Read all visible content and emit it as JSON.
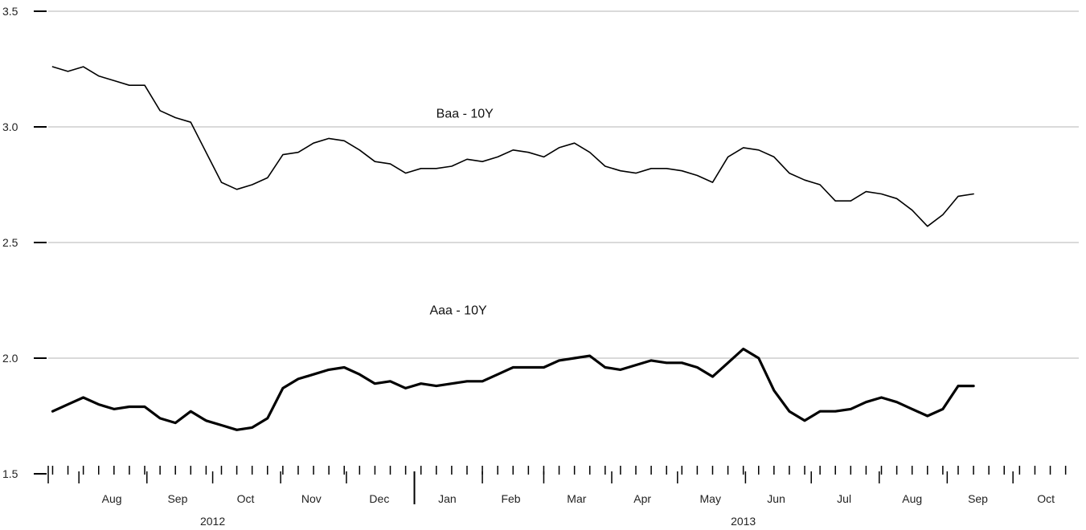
{
  "chart_data": {
    "type": "line",
    "title": "",
    "xlabel": "",
    "ylabel": "",
    "ylim": [
      1.5,
      3.5
    ],
    "xlim": [
      "2012-07-18",
      "2013-10-31"
    ],
    "grid": true,
    "y_ticks": [
      "1.5",
      "2.0",
      "2.5",
      "3.0",
      "3.5"
    ],
    "month_labels": [
      {
        "label": "Aug",
        "mid": "2012-08-16"
      },
      {
        "label": "Sep",
        "mid": "2012-09-15"
      },
      {
        "label": "Oct",
        "mid": "2012-10-16"
      },
      {
        "label": "Nov",
        "mid": "2012-11-15"
      },
      {
        "label": "Dec",
        "mid": "2012-12-16"
      },
      {
        "label": "Jan",
        "mid": "2013-01-16"
      },
      {
        "label": "Feb",
        "mid": "2013-02-14"
      },
      {
        "label": "Mar",
        "mid": "2013-03-16"
      },
      {
        "label": "Apr",
        "mid": "2013-04-15"
      },
      {
        "label": "May",
        "mid": "2013-05-16"
      },
      {
        "label": "Jun",
        "mid": "2013-06-15"
      },
      {
        "label": "Jul",
        "mid": "2013-07-16"
      },
      {
        "label": "Aug",
        "mid": "2013-08-16"
      },
      {
        "label": "Sep",
        "mid": "2013-09-15"
      },
      {
        "label": "Oct",
        "mid": "2013-10-16"
      }
    ],
    "month_boundaries": [
      "2012-08-01",
      "2012-09-01",
      "2012-10-01",
      "2012-11-01",
      "2012-12-01",
      "2013-01-01",
      "2013-02-01",
      "2013-03-01",
      "2013-04-01",
      "2013-05-01",
      "2013-06-01",
      "2013-07-01",
      "2013-08-01",
      "2013-09-01",
      "2013-10-01",
      "2013-11-01"
    ],
    "year_boundary": "2013-01-01",
    "year_labels": [
      {
        "label": "2012",
        "mid": "2012-10-01"
      },
      {
        "label": "2013",
        "mid": "2013-05-31"
      }
    ],
    "week_start": "2012-07-20",
    "week_step_days": 7,
    "series": [
      {
        "name": "Baa - 10Y",
        "label_at": {
          "x": "2013-01-24",
          "y": 3.04
        },
        "color": "#000000",
        "values": [
          3.26,
          3.24,
          3.26,
          3.22,
          3.2,
          3.18,
          3.18,
          3.07,
          3.04,
          3.02,
          2.89,
          2.76,
          2.73,
          2.75,
          2.78,
          2.88,
          2.89,
          2.93,
          2.95,
          2.94,
          2.9,
          2.85,
          2.84,
          2.8,
          2.82,
          2.82,
          2.83,
          2.86,
          2.85,
          2.87,
          2.9,
          2.89,
          2.87,
          2.91,
          2.93,
          2.89,
          2.83,
          2.81,
          2.8,
          2.82,
          2.82,
          2.81,
          2.79,
          2.76,
          2.87,
          2.91,
          2.9,
          2.87,
          2.8,
          2.77,
          2.75,
          2.68,
          2.68,
          2.72,
          2.71,
          2.69,
          2.64,
          2.57,
          2.62,
          2.7,
          2.71
        ]
      },
      {
        "name": "Aaa - 10Y",
        "label_at": {
          "x": "2013-01-21",
          "y": 2.19
        },
        "color": "#000000",
        "values": [
          1.77,
          1.8,
          1.83,
          1.8,
          1.78,
          1.79,
          1.79,
          1.74,
          1.72,
          1.77,
          1.73,
          1.71,
          1.69,
          1.7,
          1.74,
          1.87,
          1.91,
          1.93,
          1.95,
          1.96,
          1.93,
          1.89,
          1.9,
          1.87,
          1.89,
          1.88,
          1.89,
          1.9,
          1.9,
          1.93,
          1.96,
          1.96,
          1.96,
          1.99,
          2.0,
          2.01,
          1.96,
          1.95,
          1.97,
          1.99,
          1.98,
          1.98,
          1.96,
          1.92,
          1.98,
          2.04,
          2.0,
          1.86,
          1.77,
          1.73,
          1.77,
          1.77,
          1.78,
          1.81,
          1.83,
          1.81,
          1.78,
          1.75,
          1.78,
          1.88,
          1.88
        ]
      }
    ]
  }
}
